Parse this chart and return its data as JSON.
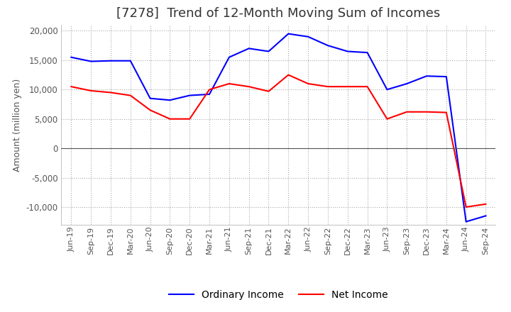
{
  "title": "[7278]  Trend of 12-Month Moving Sum of Incomes",
  "ylabel": "Amount (million yen)",
  "ylim": [
    -13000,
    21000
  ],
  "yticks": [
    -10000,
    -5000,
    0,
    5000,
    10000,
    15000,
    20000
  ],
  "x_labels": [
    "Jun-19",
    "Sep-19",
    "Dec-19",
    "Mar-20",
    "Jun-20",
    "Sep-20",
    "Dec-20",
    "Mar-21",
    "Jun-21",
    "Sep-21",
    "Dec-21",
    "Mar-22",
    "Jun-22",
    "Sep-22",
    "Dec-22",
    "Mar-23",
    "Jun-23",
    "Sep-23",
    "Dec-23",
    "Mar-24",
    "Jun-24",
    "Sep-24"
  ],
  "ordinary_income": [
    15500,
    14800,
    14900,
    14900,
    8500,
    8200,
    9000,
    9200,
    15500,
    17000,
    16500,
    19500,
    19000,
    17500,
    16500,
    16300,
    10000,
    11000,
    12300,
    12200,
    -12500,
    -11500
  ],
  "net_income": [
    10500,
    9800,
    9500,
    9000,
    6500,
    5000,
    5000,
    10000,
    11000,
    10500,
    9700,
    12500,
    11000,
    10500,
    10500,
    10500,
    5000,
    6200,
    6200,
    6100,
    -10000,
    -9500
  ],
  "ordinary_color": "#0000ff",
  "net_color": "#ff0000",
  "background_color": "#ffffff",
  "grid_color": "#aaaaaa",
  "title_fontsize": 13,
  "legend_fontsize": 10,
  "line_width": 1.5
}
